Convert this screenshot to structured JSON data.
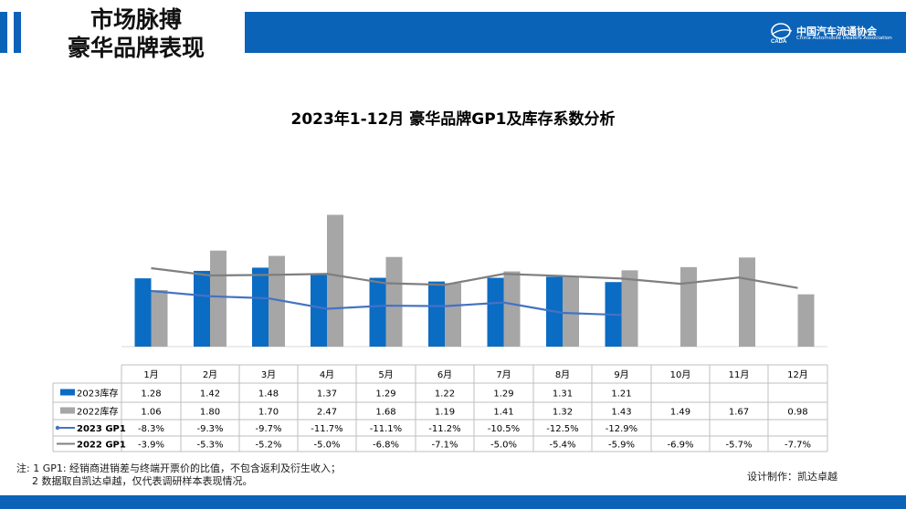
{
  "header": {
    "title_line1": "市场脉搏",
    "title_line2": "豪华品牌表现",
    "logo_cn": "中国汽车流通协会",
    "logo_en": "China Automobile Dealers Association"
  },
  "colors": {
    "brand": "#0b63b8",
    "series_2023_stock": "#0b6cc4",
    "series_2022_stock": "#a6a6a6",
    "series_2023_gp1": "#4472c4",
    "series_2022_gp1": "#7f7f7f"
  },
  "chart_data": {
    "type": "bar",
    "title": "2023年1-12月 豪华品牌GP1及库存系数分析",
    "categories": [
      "1月",
      "2月",
      "3月",
      "4月",
      "5月",
      "6月",
      "7月",
      "8月",
      "9月",
      "10月",
      "11月",
      "12月"
    ],
    "series": [
      {
        "name": "2023库存",
        "type": "bar",
        "values": [
          1.28,
          1.42,
          1.48,
          1.37,
          1.29,
          1.22,
          1.29,
          1.31,
          1.21,
          null,
          null,
          null
        ],
        "labels": [
          "1.28",
          "1.42",
          "1.48",
          "1.37",
          "1.29",
          "1.22",
          "1.29",
          "1.31",
          "1.21",
          "",
          "",
          ""
        ]
      },
      {
        "name": "2022库存",
        "type": "bar",
        "values": [
          1.06,
          1.8,
          1.7,
          2.47,
          1.68,
          1.19,
          1.41,
          1.32,
          1.43,
          1.49,
          1.67,
          0.98
        ],
        "labels": [
          "1.06",
          "1.80",
          "1.70",
          "2.47",
          "1.68",
          "1.19",
          "1.41",
          "1.32",
          "1.43",
          "1.49",
          "1.67",
          "0.98"
        ]
      },
      {
        "name": "2023 GP1",
        "type": "line",
        "values": [
          -8.3,
          -9.3,
          -9.7,
          -11.7,
          -11.1,
          -11.2,
          -10.5,
          -12.5,
          -12.9,
          null,
          null,
          null
        ],
        "labels": [
          "-8.3%",
          "-9.3%",
          "-9.7%",
          "-11.7%",
          "-11.1%",
          "-11.2%",
          "-10.5%",
          "-12.5%",
          "-12.9%",
          "",
          "",
          ""
        ]
      },
      {
        "name": "2022 GP1",
        "type": "line",
        "values": [
          -3.9,
          -5.3,
          -5.2,
          -5.0,
          -6.8,
          -7.1,
          -5.0,
          -5.4,
          -5.9,
          -6.9,
          -5.7,
          -7.7
        ],
        "labels": [
          "-3.9%",
          "-5.3%",
          "-5.2%",
          "-5.0%",
          "-6.8%",
          "-7.1%",
          "-5.0%",
          "-5.4%",
          "-5.9%",
          "-6.9%",
          "-5.7%",
          "-7.7%"
        ]
      }
    ],
    "grid": false,
    "legend": "data-table-left"
  },
  "footnote": {
    "line1": "注: 1  GP1: 经销商进销差与终端开票价的比值，不包含返利及衍生收入；",
    "line2": "2 数据取自凯达卓越，仅代表调研样本表现情况。"
  },
  "credit": "设计制作：凯达卓越"
}
